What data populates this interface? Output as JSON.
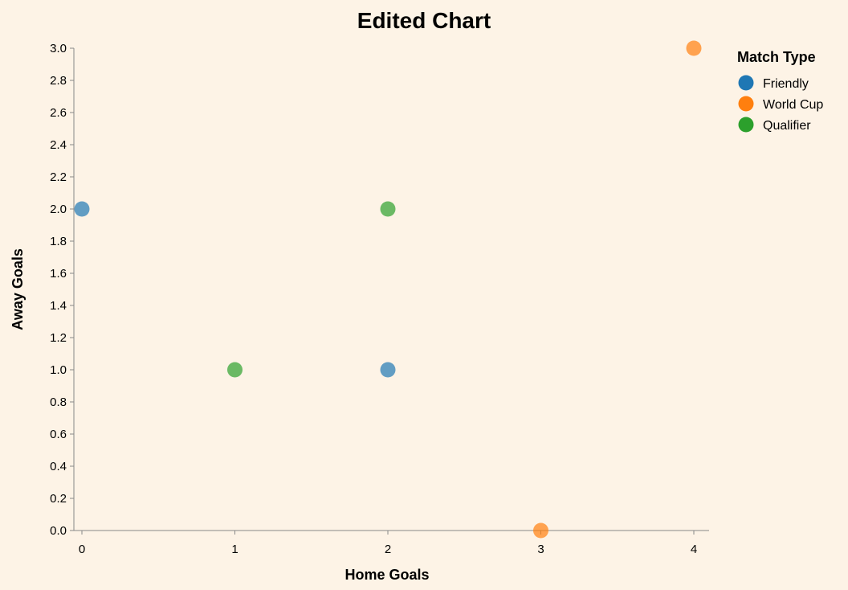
{
  "chart_data": {
    "type": "scatter",
    "title": "Edited Chart",
    "xlabel": "Home Goals",
    "ylabel": "Away Goals",
    "xlim": [
      0,
      4
    ],
    "ylim": [
      0,
      3
    ],
    "x_ticks": [
      "0",
      "1",
      "2",
      "3",
      "4"
    ],
    "y_ticks": [
      "0.0",
      "0.2",
      "0.4",
      "0.6",
      "0.8",
      "1.0",
      "1.2",
      "1.4",
      "1.6",
      "1.8",
      "2.0",
      "2.2",
      "2.4",
      "2.6",
      "2.8",
      "3.0"
    ],
    "grid": false,
    "legend": {
      "title": "Match Type",
      "placement": "right",
      "entries": [
        {
          "name": "Friendly",
          "color": "#1f77b4"
        },
        {
          "name": "World Cup",
          "color": "#ff7f0e"
        },
        {
          "name": "Qualifier",
          "color": "#2ca02c"
        }
      ]
    },
    "series": [
      {
        "name": "Friendly",
        "color": "#1f77b4",
        "points": [
          {
            "x": 0,
            "y": 2
          },
          {
            "x": 2,
            "y": 1
          }
        ]
      },
      {
        "name": "World Cup",
        "color": "#ff7f0e",
        "points": [
          {
            "x": 4,
            "y": 3
          },
          {
            "x": 3,
            "y": 0
          }
        ]
      },
      {
        "name": "Qualifier",
        "color": "#2ca02c",
        "points": [
          {
            "x": 2,
            "y": 2
          },
          {
            "x": 1,
            "y": 1
          }
        ]
      }
    ]
  }
}
